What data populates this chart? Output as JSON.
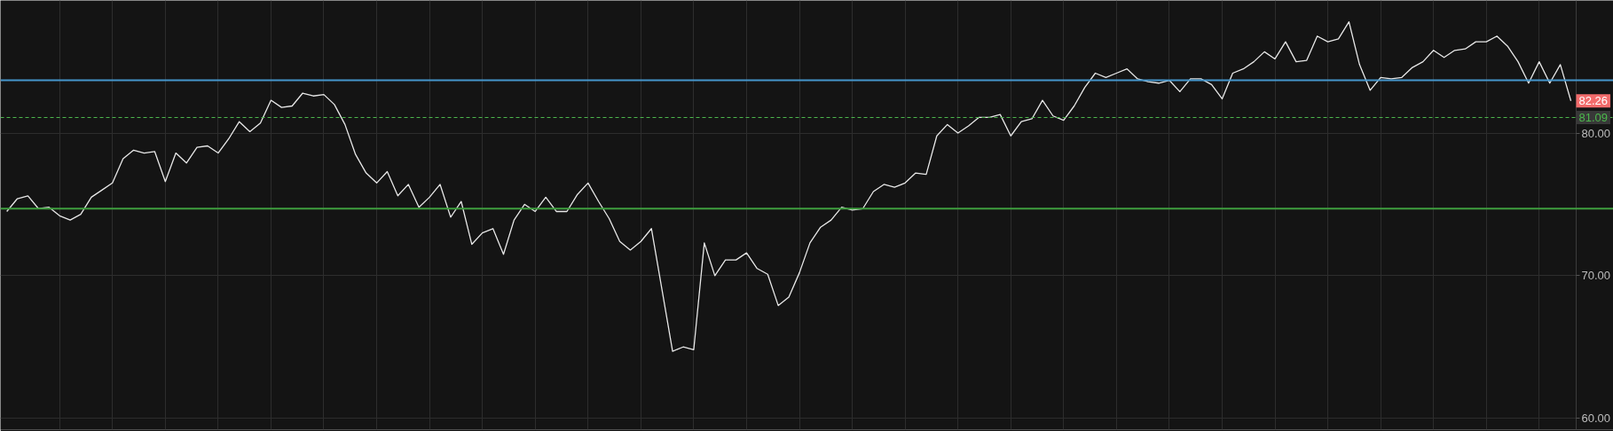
{
  "chart_data": {
    "type": "line",
    "categories": [
      null,
      null,
      null,
      null,
      null,
      null,
      null,
      null,
      null,
      null,
      null,
      null,
      null,
      null,
      null,
      null,
      null,
      null,
      null,
      null,
      null,
      null,
      null,
      null,
      null,
      null,
      null,
      null,
      null,
      null,
      null,
      null,
      null,
      null,
      null,
      null,
      null,
      null,
      null,
      null,
      null,
      null,
      null,
      null,
      null,
      null,
      null,
      null,
      null,
      null,
      null,
      null,
      null,
      null,
      null,
      null,
      null,
      null,
      null,
      null,
      null,
      null,
      null,
      null,
      null,
      null,
      null,
      null,
      null,
      null,
      null,
      null,
      null,
      null,
      null,
      null,
      null,
      null,
      null,
      null,
      null,
      null,
      null,
      null,
      null,
      null,
      null,
      null,
      null,
      null,
      null,
      null,
      null,
      null,
      null,
      null,
      null,
      null,
      null,
      null,
      null,
      null,
      null,
      null,
      null,
      null,
      null,
      null,
      null,
      null,
      null,
      null,
      null,
      null,
      null,
      null,
      null,
      null,
      null,
      null,
      null,
      null,
      null,
      null,
      null,
      null,
      null,
      null,
      null,
      null,
      null,
      null,
      null,
      null,
      null,
      null,
      null,
      null,
      null,
      null,
      null,
      null,
      null,
      null,
      null,
      null,
      null,
      null,
      null
    ],
    "series": [
      {
        "color": "#e8e8e8",
        "values": [
          74.5,
          75.4,
          75.6,
          74.7,
          74.8,
          74.2,
          73.9,
          74.3,
          75.5,
          76.0,
          76.5,
          78.2,
          78.8,
          78.6,
          78.7,
          76.6,
          78.6,
          77.9,
          79.0,
          79.1,
          78.6,
          79.6,
          80.8,
          80.1,
          80.7,
          82.3,
          81.8,
          81.9,
          82.8,
          82.6,
          82.7,
          82.0,
          80.6,
          78.5,
          77.2,
          76.5,
          77.3,
          75.6,
          76.4,
          74.8,
          75.5,
          76.4,
          74.1,
          75.2,
          72.2,
          73.0,
          73.3,
          71.5,
          73.9,
          75.0,
          74.5,
          75.5,
          74.5,
          74.5,
          75.7,
          76.5,
          75.2,
          74.0,
          72.4,
          71.8,
          72.4,
          73.3,
          69.0,
          64.7,
          65.0,
          64.8,
          72.3,
          70.0,
          71.1,
          71.1,
          71.6,
          70.5,
          70.1,
          67.9,
          68.5,
          70.2,
          72.3,
          73.4,
          73.9,
          74.8,
          74.6,
          74.7,
          75.9,
          76.4,
          76.2,
          76.5,
          77.2,
          77.1,
          79.8,
          80.6,
          80.0,
          80.5,
          81.1,
          81.1,
          81.3,
          79.8,
          80.8,
          81.0,
          82.3,
          81.2,
          80.9,
          81.9,
          83.2,
          84.2,
          83.9,
          84.2,
          84.5,
          83.8,
          83.6,
          83.5,
          83.7,
          82.9,
          83.8,
          83.8,
          83.4,
          82.4,
          84.2,
          84.5,
          85.0,
          85.7,
          85.2,
          86.4,
          85.0,
          85.1,
          86.8,
          86.4,
          86.6,
          87.8,
          84.8,
          83.0,
          83.9,
          83.8,
          83.9,
          84.6,
          85.0,
          85.8,
          85.3,
          85.8,
          85.9,
          86.4,
          86.4,
          86.8,
          86.1,
          85.0,
          83.5,
          85.0,
          83.5,
          84.8,
          82.26
        ],
        "value_labels": [
          null,
          null,
          null,
          null,
          null,
          null,
          null,
          null,
          null,
          null,
          null,
          null,
          null,
          null,
          null,
          null,
          null,
          null,
          null,
          null,
          null,
          null,
          null,
          null,
          null,
          null,
          null,
          null,
          null,
          null,
          null,
          null,
          null,
          null,
          null,
          null,
          null,
          null,
          null,
          null,
          null,
          null,
          null,
          null,
          null,
          null,
          null,
          null,
          null,
          null,
          null,
          null,
          null,
          null,
          null,
          null,
          null,
          null,
          null,
          null,
          null,
          null,
          null,
          null,
          null,
          null,
          null,
          null,
          null,
          null,
          null,
          null,
          null,
          null,
          null,
          null,
          null,
          null,
          null,
          null,
          null,
          null,
          null,
          null,
          null,
          null,
          null,
          null,
          null,
          null,
          null,
          null,
          null,
          null,
          null,
          null,
          null,
          null,
          null,
          null,
          null,
          null,
          null,
          null,
          null,
          null,
          null,
          null,
          null,
          null,
          null,
          null,
          null,
          null,
          null,
          null,
          null,
          null,
          null,
          null,
          null,
          null,
          null,
          null,
          null,
          null,
          null,
          null,
          null,
          null,
          null,
          null,
          null,
          null,
          null,
          null,
          null,
          null,
          null,
          null,
          null,
          null,
          null,
          null,
          null,
          null,
          null,
          null,
          "82.26"
        ]
      }
    ],
    "ylim": [
      59.2,
      89.3
    ],
    "yticks": [
      {
        "value": 60,
        "label": "60.00"
      },
      {
        "value": 70,
        "label": "70.00"
      },
      {
        "value": 80,
        "label": "80.00"
      }
    ],
    "ref_lines": [
      {
        "axis": "y",
        "value": 83.7,
        "color": "#4596cc"
      },
      {
        "axis": "y",
        "value": 81.09,
        "label": "81.09",
        "color": "#4cb84c",
        "line_style": "dashed"
      },
      {
        "axis": "y",
        "value": 74.7,
        "color": "#3e9e3e"
      }
    ],
    "grid": true,
    "tick_labels": "y"
  }
}
